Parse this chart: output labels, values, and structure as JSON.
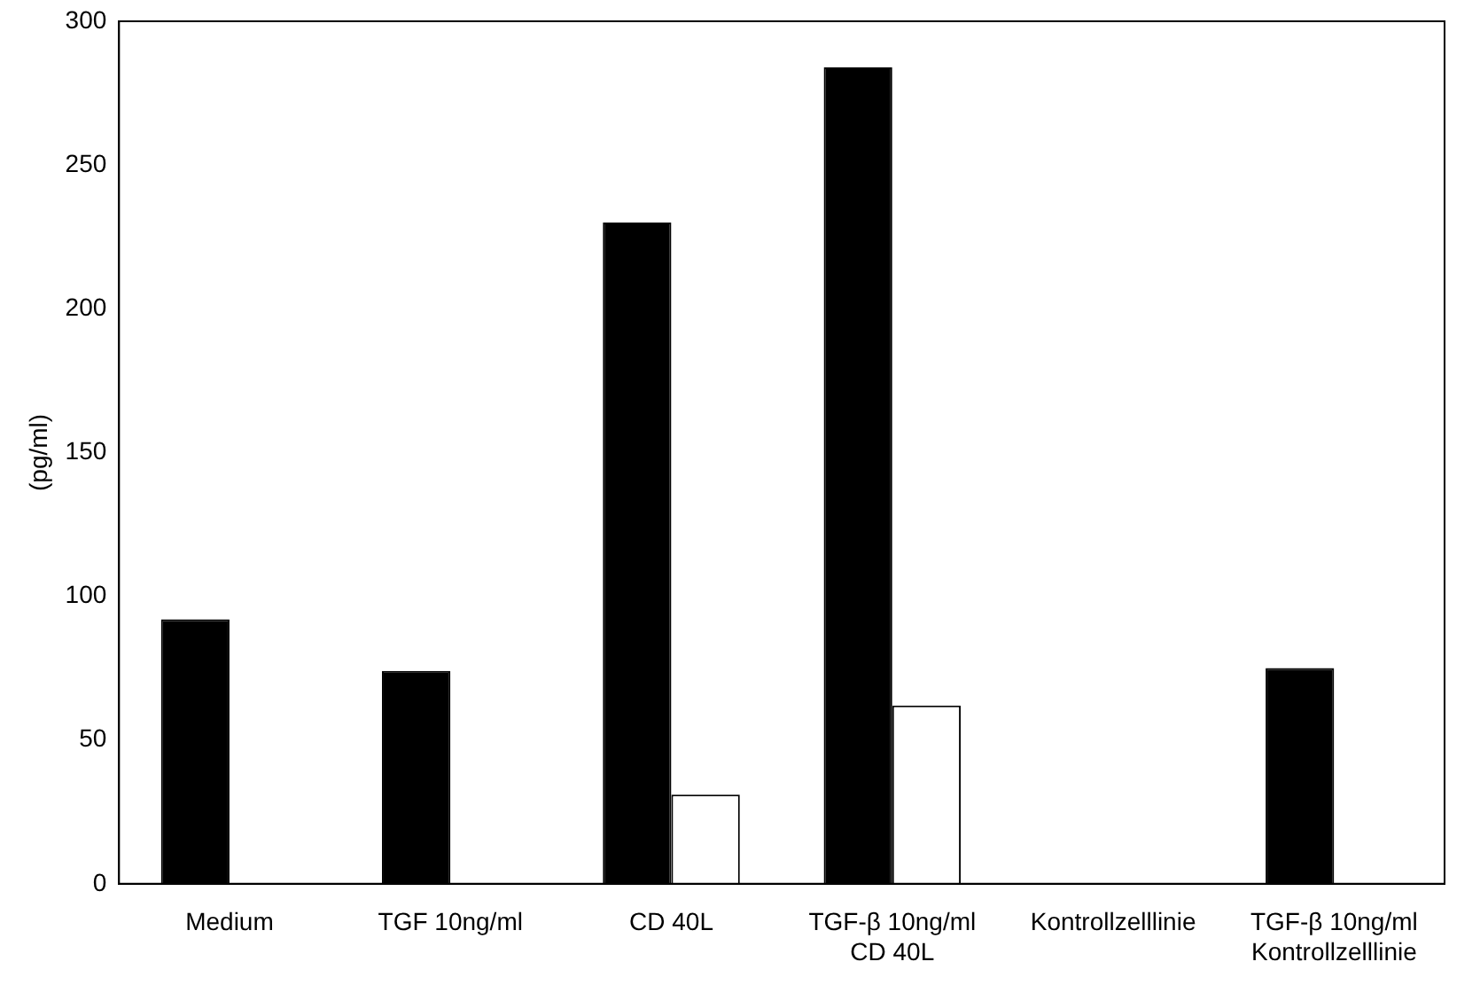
{
  "chart_data": {
    "type": "bar",
    "ylabel": "(pg/ml)",
    "categories": [
      "Medium",
      "TGF 10ng/ml",
      "CD 40L",
      "TGF-β 10ng/ml\nCD 40L",
      "Kontrollzelllinie",
      "TGF-β 10ng/ml\nKontrollzelllinie"
    ],
    "series": [
      {
        "color": "#000000",
        "values": [
          92,
          74,
          230,
          284,
          null,
          75
        ]
      },
      {
        "color": "#ffffff",
        "values": [
          null,
          null,
          31,
          62,
          null,
          null
        ]
      }
    ],
    "ylim": [
      0,
      300
    ],
    "yticks": [
      0,
      50,
      100,
      150,
      200,
      250,
      300
    ],
    "grid": false,
    "legend": false
  }
}
